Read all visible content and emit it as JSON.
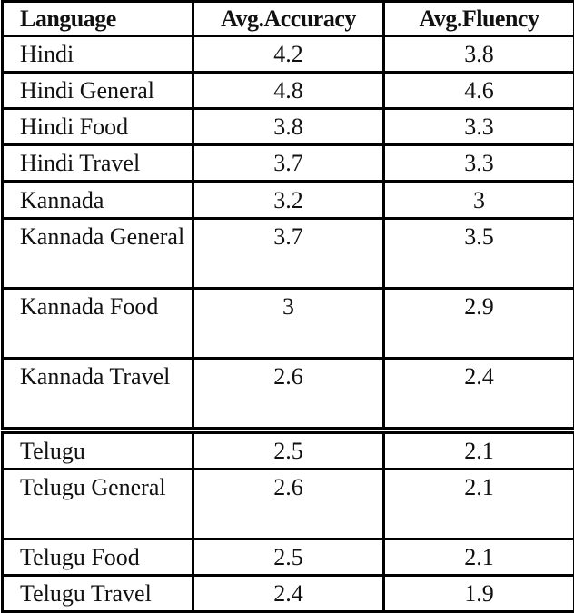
{
  "table": {
    "headers": [
      "Language",
      "Avg.Accuracy",
      "Avg.Fluency"
    ],
    "groups": [
      {
        "name": "Hindi",
        "rows": [
          {
            "language": "Hindi",
            "accuracy": "4.2",
            "fluency": "3.8"
          },
          {
            "language": "Hindi General",
            "accuracy": "4.8",
            "fluency": "4.6"
          },
          {
            "language": "Hindi Food",
            "accuracy": "3.8",
            "fluency": "3.3"
          },
          {
            "language": "Hindi Travel",
            "accuracy": "3.7",
            "fluency": "3.3"
          }
        ]
      },
      {
        "name": "Kannada",
        "rows": [
          {
            "language": "Kannada",
            "accuracy": "3.2",
            "fluency": "3"
          },
          {
            "language": "Kannada General",
            "accuracy": "3.7",
            "fluency": "3.5"
          },
          {
            "language": "Kannada Food",
            "accuracy": "3",
            "fluency": "2.9"
          },
          {
            "language": "Kannada Travel",
            "accuracy": "2.6",
            "fluency": "2.4"
          }
        ]
      },
      {
        "name": "Telugu",
        "rows": [
          {
            "language": "Telugu",
            "accuracy": "2.5",
            "fluency": "2.1"
          },
          {
            "language": "Telugu General",
            "accuracy": "2.6",
            "fluency": "2.1"
          },
          {
            "language": "Telugu Food",
            "accuracy": "2.5",
            "fluency": "2.1"
          },
          {
            "language": "Telugu Travel",
            "accuracy": "2.4",
            "fluency": "1.9"
          }
        ]
      }
    ]
  }
}
